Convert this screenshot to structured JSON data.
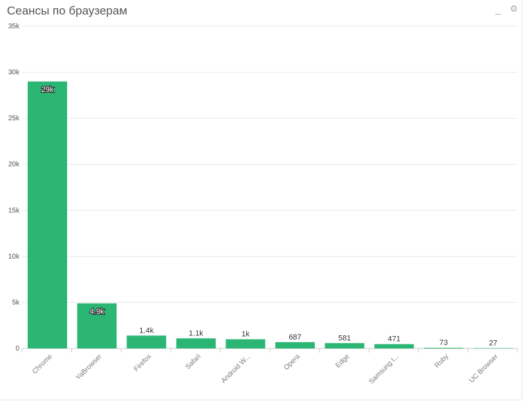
{
  "header": {
    "title": "Сеансы по браузерам",
    "minimize_glyph": "_",
    "settings_glyph": "⚙"
  },
  "colors": {
    "bar": "#2bb673",
    "grid": "#e8e8e8",
    "axis": "#cccccc"
  },
  "chart_data": {
    "type": "bar",
    "title": "",
    "xlabel": "",
    "ylabel": "",
    "ylim": [
      0,
      35000
    ],
    "yticks": [
      0,
      5000,
      10000,
      15000,
      20000,
      25000,
      30000,
      35000
    ],
    "ytick_labels": [
      "0",
      "5k",
      "10k",
      "15k",
      "20k",
      "25k",
      "30k",
      "35k"
    ],
    "grid": true,
    "legend": "none",
    "categories": [
      "Chrome",
      "YaBrowser",
      "Firefox",
      "Safari",
      "Android W...",
      "Opera",
      "Edge",
      "Samsung I...",
      "Ruby",
      "UC Browser"
    ],
    "values": [
      29000,
      4900,
      1400,
      1100,
      1000,
      687,
      581,
      471,
      73,
      27
    ],
    "data_labels": [
      "29k",
      "4.9k",
      "1.4k",
      "1.1k",
      "1k",
      "687",
      "581",
      "471",
      "73",
      "27"
    ]
  }
}
